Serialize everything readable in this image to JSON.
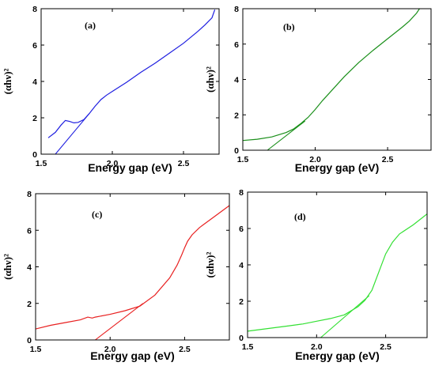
{
  "chart_data": [
    {
      "type": "line",
      "panel_label": "(a)",
      "xlabel": "Energy gap (eV)",
      "ylabel": "(αhν)²",
      "xlim": [
        1.5,
        2.75
      ],
      "ylim": [
        0,
        8
      ],
      "xticks": [
        1.5,
        2.0,
        2.5
      ],
      "xtick_labels": [
        "1.5",
        "2.0",
        "2.5"
      ],
      "yticks": [
        0,
        2,
        4,
        6,
        8
      ],
      "ytick_labels": [
        "0",
        "2",
        "4",
        "6",
        "8"
      ],
      "color": "#1f1fe0",
      "series": [
        {
          "x": [
            1.55,
            1.6,
            1.64,
            1.67,
            1.7,
            1.73,
            1.76,
            1.8,
            1.84,
            1.88,
            1.92,
            1.96,
            2.0,
            2.1,
            2.2,
            2.3,
            2.4,
            2.5,
            2.6,
            2.65,
            2.7,
            2.72
          ],
          "y": [
            0.9,
            1.2,
            1.6,
            1.85,
            1.8,
            1.72,
            1.75,
            1.9,
            2.25,
            2.65,
            3.0,
            3.25,
            3.45,
            3.95,
            4.5,
            5.0,
            5.55,
            6.1,
            6.75,
            7.1,
            7.5,
            7.95
          ]
        },
        {
          "x": [
            1.6,
            1.84
          ],
          "y": [
            0.0,
            2.25
          ]
        }
      ]
    },
    {
      "type": "line",
      "panel_label": "(b)",
      "xlabel": "Energy gap (eV)",
      "ylabel": "(αhν)²",
      "xlim": [
        1.5,
        2.8
      ],
      "ylim": [
        0,
        8
      ],
      "xticks": [
        1.5,
        2.0,
        2.5
      ],
      "xtick_labels": [
        "1.5",
        "2.0",
        "2.5"
      ],
      "yticks": [
        0,
        2,
        4,
        6,
        8
      ],
      "ytick_labels": [
        "0",
        "2",
        "4",
        "6",
        "8"
      ],
      "color": "#1a8f1a",
      "series": [
        {
          "x": [
            1.5,
            1.6,
            1.7,
            1.8,
            1.85,
            1.9,
            1.95,
            2.0,
            2.05,
            2.1,
            2.2,
            2.3,
            2.4,
            2.5,
            2.6,
            2.65,
            2.7,
            2.72
          ],
          "y": [
            0.55,
            0.62,
            0.75,
            1.0,
            1.2,
            1.5,
            1.85,
            2.3,
            2.8,
            3.25,
            4.15,
            4.95,
            5.65,
            6.3,
            6.95,
            7.3,
            7.75,
            8.0
          ]
        },
        {
          "x": [
            1.67,
            1.93
          ],
          "y": [
            0.0,
            1.65
          ]
        }
      ]
    },
    {
      "type": "line",
      "panel_label": "(c)",
      "xlabel": "Energy gap (eV)",
      "ylabel": "(αhν)²",
      "xlim": [
        1.5,
        2.8
      ],
      "ylim": [
        0,
        8
      ],
      "xticks": [
        1.5,
        2.0,
        2.5
      ],
      "xtick_labels": [
        "1.5",
        "2.0",
        "2.5"
      ],
      "yticks": [
        0,
        2,
        4,
        6,
        8
      ],
      "ytick_labels": [
        "0",
        "2",
        "4",
        "6",
        "8"
      ],
      "color": "#e82020",
      "series": [
        {
          "x": [
            1.5,
            1.6,
            1.7,
            1.8,
            1.85,
            1.88,
            1.9,
            2.0,
            2.1,
            2.2,
            2.3,
            2.4,
            2.45,
            2.48,
            2.5,
            2.52,
            2.55,
            2.6,
            2.7,
            2.8
          ],
          "y": [
            0.6,
            0.8,
            0.95,
            1.1,
            1.25,
            1.2,
            1.25,
            1.4,
            1.6,
            1.85,
            2.45,
            3.4,
            4.1,
            4.65,
            5.05,
            5.4,
            5.75,
            6.15,
            6.75,
            7.35
          ]
        },
        {
          "x": [
            1.9,
            2.22
          ],
          "y": [
            0.0,
            2.0
          ]
        }
      ]
    },
    {
      "type": "line",
      "panel_label": "(d)",
      "xlabel": "Energy gap (eV)",
      "ylabel": "(αhν)²",
      "xlim": [
        1.5,
        2.8
      ],
      "ylim": [
        0,
        8
      ],
      "xticks": [
        1.5,
        2.0,
        2.5
      ],
      "xtick_labels": [
        "1.5",
        "2.0",
        "2.5"
      ],
      "yticks": [
        0,
        2,
        4,
        6,
        8
      ],
      "ytick_labels": [
        "0",
        "2",
        "4",
        "6",
        "8"
      ],
      "color": "#33e033",
      "series": [
        {
          "x": [
            1.5,
            1.6,
            1.7,
            1.8,
            1.9,
            2.0,
            2.1,
            2.2,
            2.3,
            2.35,
            2.4,
            2.45,
            2.5,
            2.55,
            2.6,
            2.7,
            2.8
          ],
          "y": [
            0.35,
            0.45,
            0.55,
            0.65,
            0.75,
            0.9,
            1.05,
            1.25,
            1.7,
            2.05,
            2.6,
            3.6,
            4.6,
            5.25,
            5.7,
            6.2,
            6.8
          ]
        },
        {
          "x": [
            2.03,
            2.38
          ],
          "y": [
            0.0,
            2.3
          ]
        }
      ]
    }
  ]
}
